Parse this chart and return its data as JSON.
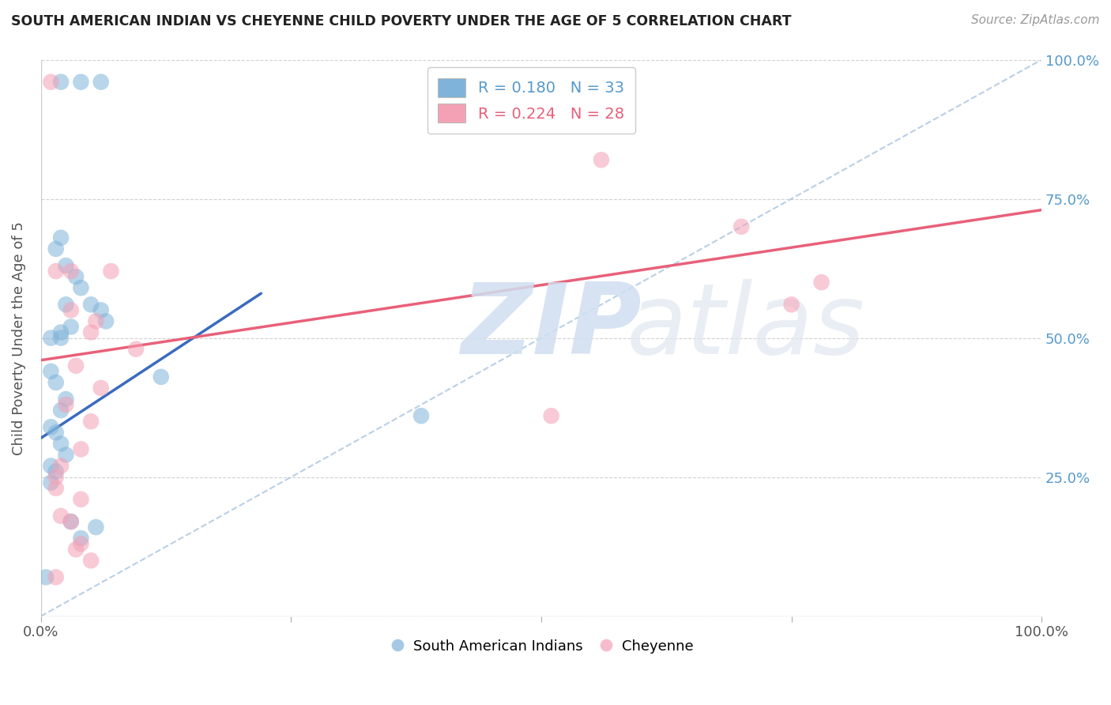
{
  "title": "SOUTH AMERICAN INDIAN VS CHEYENNE CHILD POVERTY UNDER THE AGE OF 5 CORRELATION CHART",
  "source": "Source: ZipAtlas.com",
  "ylabel": "Child Poverty Under the Age of 5",
  "xlim": [
    0,
    1
  ],
  "ylim": [
    0,
    1
  ],
  "yticks": [
    0.0,
    0.25,
    0.5,
    0.75,
    1.0
  ],
  "ytick_labels": [
    "",
    "25.0%",
    "50.0%",
    "75.0%",
    "100.0%"
  ],
  "xticks": [
    0.0,
    0.25,
    0.5,
    0.75,
    1.0
  ],
  "xtick_labels": [
    "0.0%",
    "",
    "",
    "",
    "100.0%"
  ],
  "legend_blue_r": "R = 0.180",
  "legend_blue_n": "N = 33",
  "legend_pink_r": "R = 0.224",
  "legend_pink_n": "N = 28",
  "legend_blue_label": "South American Indians",
  "legend_pink_label": "Cheyenne",
  "blue_color": "#7fb3d9",
  "pink_color": "#f4a0b5",
  "blue_line_color": "#3a6bbf",
  "pink_line_color": "#e8607a",
  "diag_line_color": "#a8c4e0",
  "background_color": "#ffffff",
  "watermark_zip": "ZIP",
  "watermark_atlas": "atlas",
  "blue_scatter_x": [
    0.02,
    0.04,
    0.06,
    0.02,
    0.015,
    0.025,
    0.035,
    0.04,
    0.025,
    0.05,
    0.06,
    0.065,
    0.03,
    0.02,
    0.02,
    0.01,
    0.01,
    0.015,
    0.025,
    0.02,
    0.01,
    0.015,
    0.02,
    0.025,
    0.01,
    0.015,
    0.01,
    0.12,
    0.38,
    0.03,
    0.055,
    0.04,
    0.005
  ],
  "blue_scatter_y": [
    0.96,
    0.96,
    0.96,
    0.68,
    0.66,
    0.63,
    0.61,
    0.59,
    0.56,
    0.56,
    0.55,
    0.53,
    0.52,
    0.51,
    0.5,
    0.5,
    0.44,
    0.42,
    0.39,
    0.37,
    0.34,
    0.33,
    0.31,
    0.29,
    0.27,
    0.26,
    0.24,
    0.43,
    0.36,
    0.17,
    0.16,
    0.14,
    0.07
  ],
  "pink_scatter_x": [
    0.01,
    0.015,
    0.03,
    0.07,
    0.03,
    0.055,
    0.05,
    0.095,
    0.035,
    0.06,
    0.025,
    0.05,
    0.04,
    0.02,
    0.015,
    0.015,
    0.56,
    0.7,
    0.78,
    0.51,
    0.75,
    0.04,
    0.02,
    0.03,
    0.04,
    0.035,
    0.05,
    0.015
  ],
  "pink_scatter_y": [
    0.96,
    0.62,
    0.62,
    0.62,
    0.55,
    0.53,
    0.51,
    0.48,
    0.45,
    0.41,
    0.38,
    0.35,
    0.3,
    0.27,
    0.25,
    0.23,
    0.82,
    0.7,
    0.6,
    0.36,
    0.56,
    0.21,
    0.18,
    0.17,
    0.13,
    0.12,
    0.1,
    0.07
  ],
  "blue_line_x": [
    0.0,
    0.22
  ],
  "blue_line_y": [
    0.32,
    0.58
  ],
  "pink_line_x": [
    0.0,
    1.0
  ],
  "pink_line_y": [
    0.46,
    0.73
  ],
  "diag_line_x": [
    0.0,
    1.0
  ],
  "diag_line_y": [
    0.0,
    1.0
  ]
}
